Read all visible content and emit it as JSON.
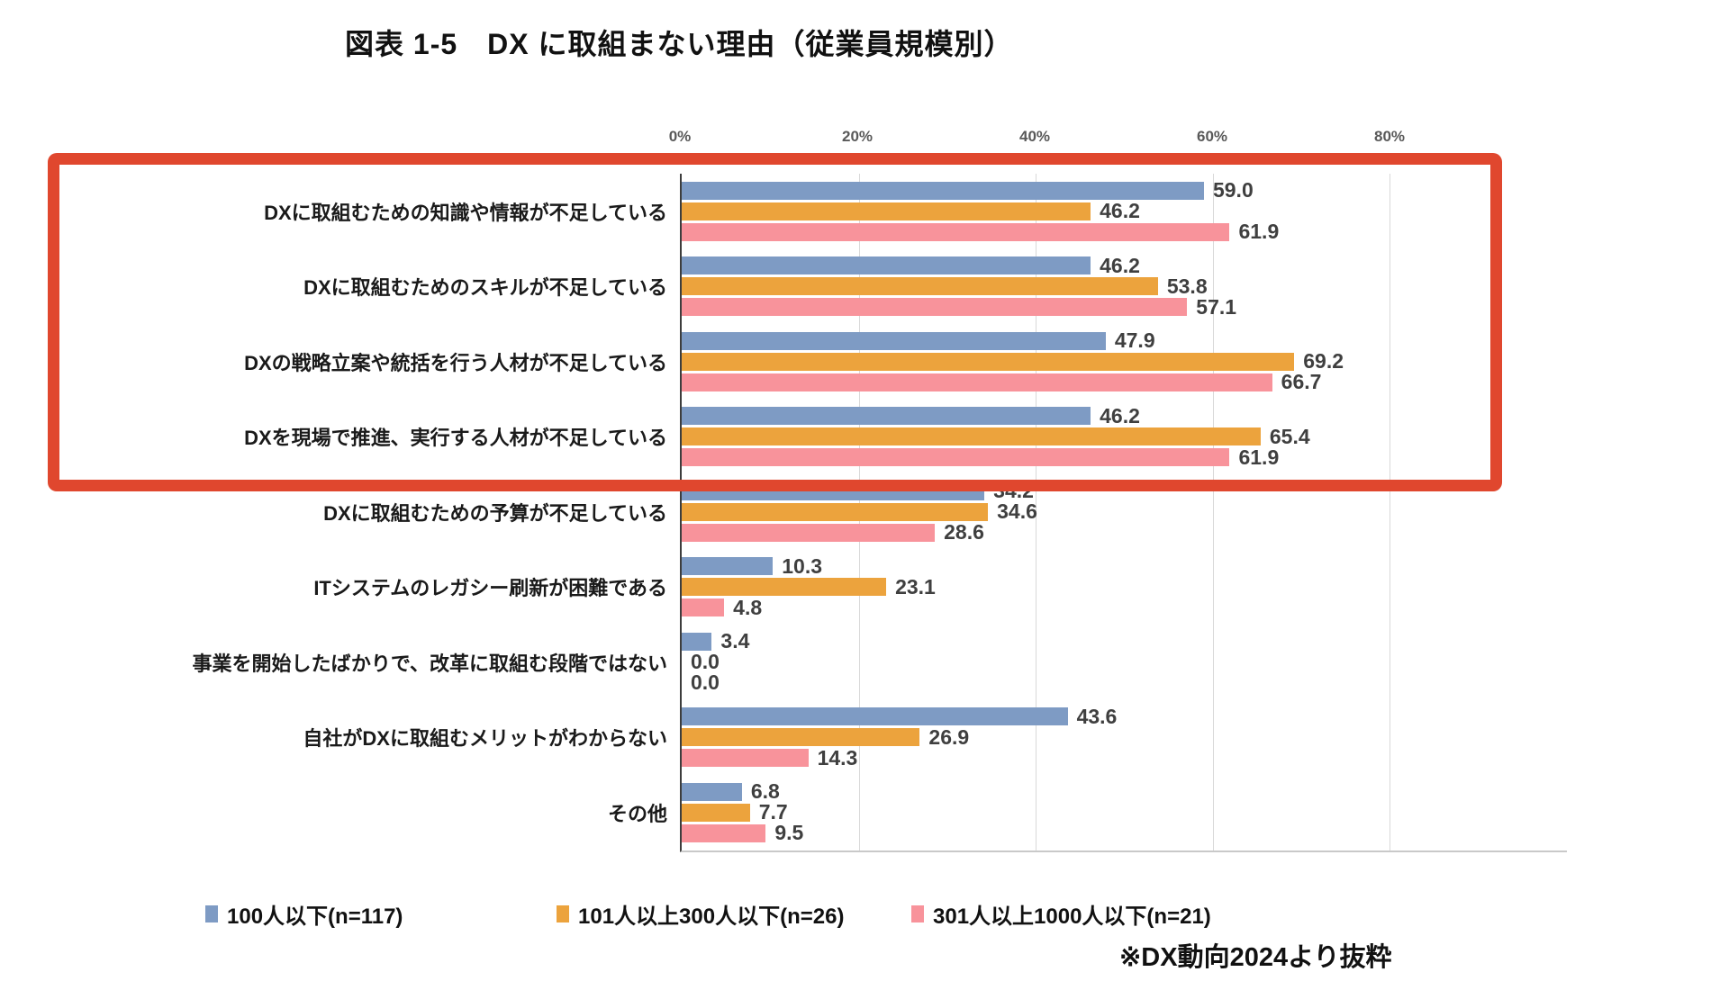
{
  "chart_data": {
    "type": "bar",
    "orientation": "horizontal",
    "title": "図表 1-5　DX に取組まない理由（従業員規模別）",
    "xlabel": "",
    "ylabel": "",
    "x_ticks": [
      "0%",
      "20%",
      "40%",
      "60%",
      "80%"
    ],
    "x_tick_step_percent": 20,
    "x_axis_max_percent": 100,
    "grid": true,
    "legend_position": "bottom",
    "value_labels": "one-decimal",
    "categories": [
      "DXに取組むための知識や情報が不足している",
      "DXに取組むためのスキルが不足している",
      "DXの戦略立案や統括を行う人材が不足している",
      "DXを現場で推進、実行する人材が不足している",
      "DXに取組むための予算が不足している",
      "ITシステムのレガシー刷新が困難である",
      "事業を開始したばかりで、改革に取組む段階ではない",
      "自社がDXに取組むメリットがわからない",
      "その他"
    ],
    "series": [
      {
        "name": "100人以下(n=117)",
        "color": "#7E9BC4",
        "values": [
          59.0,
          46.2,
          47.9,
          46.2,
          34.2,
          10.3,
          3.4,
          43.6,
          6.8
        ]
      },
      {
        "name": "101人以上300人以下(n=26)",
        "color": "#ECA33D",
        "values": [
          46.2,
          53.8,
          69.2,
          65.4,
          34.6,
          23.1,
          0.0,
          26.9,
          7.7
        ]
      },
      {
        "name": "301人以上1000人以下(n=21)",
        "color": "#F8939B",
        "values": [
          61.9,
          57.1,
          66.7,
          61.9,
          28.6,
          4.8,
          0.0,
          14.3,
          9.5
        ]
      }
    ],
    "highlight_box": {
      "color": "#E0472E",
      "covers_categories": [
        "DXに取組むための知識や情報が不足している",
        "DXに取組むためのスキルが不足している",
        "DXの戦略立案や統括を行う人材が不足している",
        "DXを現場で推進、実行する人材が不足している"
      ]
    },
    "footnote": "※DX動向2024より抜粋"
  },
  "colors": {
    "series_blue": "#7E9BC4",
    "series_orange": "#ECA33D",
    "series_pink": "#F8939B",
    "highlight_red": "#E0472E",
    "gridline": "#D9D9D9",
    "tick_label": "#595959",
    "value_label": "#3F3F3F"
  }
}
